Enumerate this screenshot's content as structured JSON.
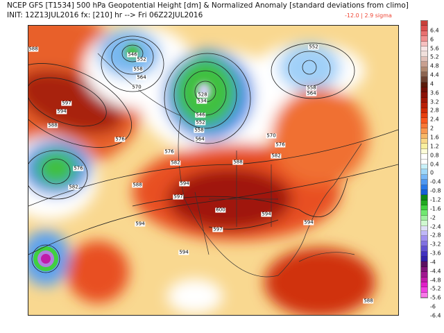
{
  "header": {
    "title": "NCEP GFS [T1534] 500 hPa Geopotential Height [dm] & Normalized Anomaly [standard deviations from climo]",
    "init_line": "INIT: 12Z13JUL2016 fx: [210] hr --> Fri 06Z22JUL2016",
    "anomaly_range": "-12.0 | 2.9 sigma"
  },
  "map": {
    "contour_labels": [
      "588",
      "546",
      "552",
      "558",
      "564",
      "570",
      "597",
      "594",
      "588",
      "576",
      "576",
      "582",
      "576",
      "582",
      "528",
      "534",
      "546",
      "552",
      "558",
      "564",
      "552",
      "558",
      "564",
      "570",
      "576",
      "582",
      "588",
      "594",
      "597",
      "600",
      "594",
      "594",
      "597",
      "594",
      "594",
      "588",
      "588"
    ]
  },
  "colorbar": {
    "colors": [
      "#c8403a",
      "#dc5050",
      "#e87070",
      "#f09090",
      "#f6c0c0",
      "#f8e6e6",
      "#f0e0dc",
      "#e0c0b8",
      "#c8a090",
      "#b08870",
      "#8c6450",
      "#6c4030",
      "#5a1a0a",
      "#701008",
      "#8a1208",
      "#a01808",
      "#b82008",
      "#d02c08",
      "#e84010",
      "#f85820",
      "#f87838",
      "#f89850",
      "#f8b868",
      "#f8d888",
      "#f8f0a0",
      "#fcfcd8",
      "#ffffff",
      "#ffffff",
      "#c8f0f8",
      "#a0d8f8",
      "#78b8f8",
      "#5098f0",
      "#2878e8",
      "#1860d8",
      "#108818",
      "#20a820",
      "#40d040",
      "#70e870",
      "#a0f0a0",
      "#d0f8d0",
      "#e0e0f8",
      "#c0b8f8",
      "#a090f0",
      "#8070e0",
      "#6050d0",
      "#4030c0",
      "#3020a8",
      "#5a1060",
      "#801478",
      "#a01890",
      "#c01ca8",
      "#e020c8",
      "#f040e0",
      "#f878e8"
    ],
    "tick_labels": [
      "6.4",
      "6",
      "5.6",
      "5.2",
      "4.8",
      "4.4",
      "4",
      "3.6",
      "3.2",
      "2.8",
      "2.4",
      "2",
      "1.6",
      "1.2",
      "0.8",
      "0.4",
      "0",
      "-0.4",
      "-0.8",
      "-1.2",
      "-1.6",
      "-2",
      "-2.4",
      "-2.8",
      "-3.2",
      "-3.6",
      "-4",
      "-4.4",
      "-4.8",
      "-5.2",
      "-5.6",
      "-6",
      "-6.4"
    ]
  }
}
